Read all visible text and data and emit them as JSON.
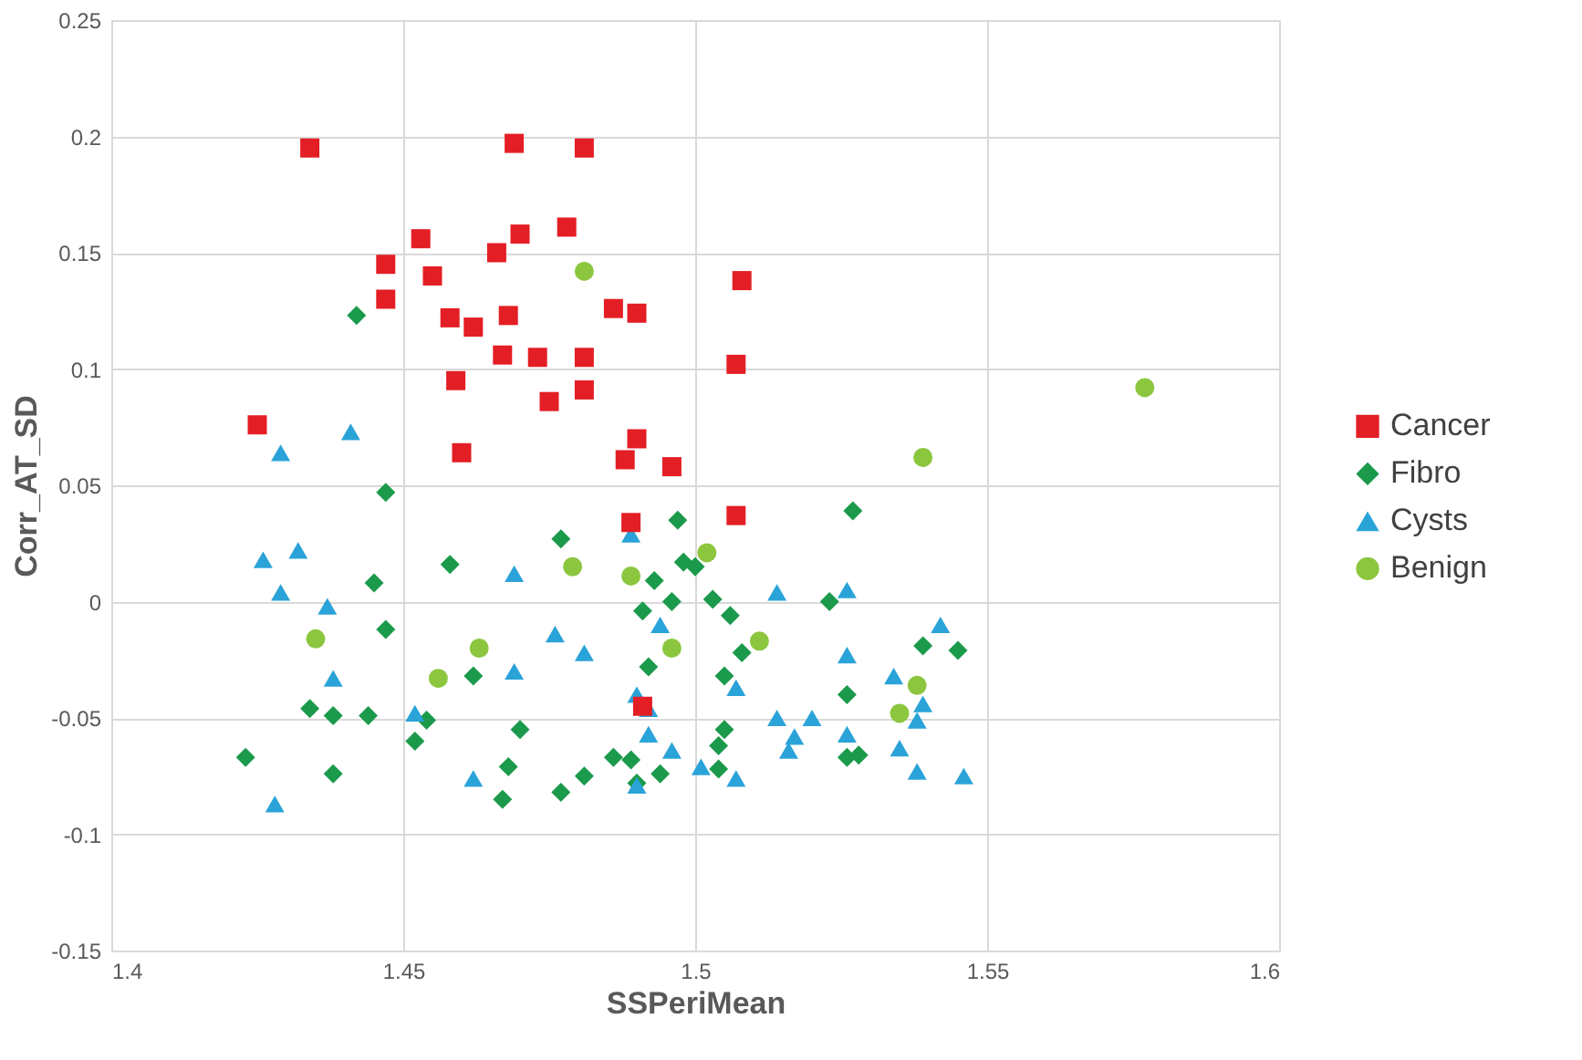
{
  "chart_data": {
    "type": "scatter",
    "xlabel": "SSPeriMean",
    "ylabel": "Corr_AT_SD",
    "xlim": [
      1.4,
      1.6
    ],
    "xticks": [
      1.4,
      1.45,
      1.5,
      1.55,
      1.6
    ],
    "ylim": [
      -0.15,
      0.25
    ],
    "yticks": [
      -0.15,
      -0.1,
      -0.05,
      0,
      0.05,
      0.1,
      0.15,
      0.2,
      0.25
    ],
    "grid": true,
    "legend": "right",
    "series": [
      {
        "name": "Cancer",
        "color": "#e31e24",
        "marker": "square",
        "x": [
          1.434,
          1.469,
          1.481,
          1.453,
          1.47,
          1.478,
          1.466,
          1.447,
          1.455,
          1.447,
          1.508,
          1.458,
          1.462,
          1.468,
          1.486,
          1.49,
          1.467,
          1.473,
          1.481,
          1.507,
          1.459,
          1.481,
          1.475,
          1.425,
          1.46,
          1.49,
          1.488,
          1.496,
          1.489,
          1.507,
          1.491
        ],
        "values": [
          0.195,
          0.197,
          0.195,
          0.156,
          0.158,
          0.161,
          0.15,
          0.145,
          0.14,
          0.13,
          0.138,
          0.122,
          0.118,
          0.123,
          0.126,
          0.124,
          0.106,
          0.105,
          0.105,
          0.102,
          0.095,
          0.091,
          0.086,
          0.076,
          0.064,
          0.07,
          0.061,
          0.058,
          0.034,
          0.037,
          -0.045
        ]
      },
      {
        "name": "Fibro",
        "color": "#1b9a4b",
        "marker": "diamond",
        "x": [
          1.442,
          1.447,
          1.477,
          1.497,
          1.527,
          1.458,
          1.445,
          1.498,
          1.5,
          1.493,
          1.503,
          1.496,
          1.523,
          1.491,
          1.506,
          1.447,
          1.539,
          1.545,
          1.508,
          1.492,
          1.462,
          1.505,
          1.526,
          1.434,
          1.438,
          1.444,
          1.454,
          1.452,
          1.47,
          1.505,
          1.504,
          1.486,
          1.489,
          1.423,
          1.526,
          1.528,
          1.468,
          1.504,
          1.438,
          1.481,
          1.494,
          1.477,
          1.467,
          1.49
        ],
        "values": [
          0.123,
          0.047,
          0.027,
          0.035,
          0.039,
          0.016,
          0.008,
          0.017,
          0.015,
          0.009,
          0.001,
          0.0,
          0.0,
          -0.004,
          -0.006,
          -0.012,
          -0.019,
          -0.021,
          -0.022,
          -0.028,
          -0.032,
          -0.032,
          -0.04,
          -0.046,
          -0.049,
          -0.049,
          -0.051,
          -0.06,
          -0.055,
          -0.055,
          -0.062,
          -0.067,
          -0.068,
          -0.067,
          -0.067,
          -0.066,
          -0.071,
          -0.072,
          -0.074,
          -0.075,
          -0.074,
          -0.082,
          -0.085,
          -0.078
        ]
      },
      {
        "name": "Cysts",
        "color": "#2aa3d8",
        "marker": "triangle",
        "x": [
          1.441,
          1.429,
          1.426,
          1.432,
          1.429,
          1.437,
          1.469,
          1.489,
          1.514,
          1.526,
          1.542,
          1.476,
          1.494,
          1.481,
          1.438,
          1.469,
          1.526,
          1.507,
          1.534,
          1.49,
          1.492,
          1.452,
          1.492,
          1.514,
          1.52,
          1.539,
          1.538,
          1.517,
          1.516,
          1.526,
          1.535,
          1.496,
          1.49,
          1.501,
          1.507,
          1.538,
          1.546,
          1.462,
          1.428
        ],
        "values": [
          0.073,
          0.064,
          0.018,
          0.022,
          0.004,
          -0.002,
          0.012,
          0.029,
          0.004,
          0.005,
          -0.01,
          -0.014,
          -0.01,
          -0.022,
          -0.033,
          -0.03,
          -0.023,
          -0.037,
          -0.032,
          -0.04,
          -0.046,
          -0.048,
          -0.057,
          -0.05,
          -0.05,
          -0.044,
          -0.051,
          -0.058,
          -0.064,
          -0.057,
          -0.063,
          -0.064,
          -0.079,
          -0.071,
          -0.076,
          -0.073,
          -0.075,
          -0.076,
          -0.087
        ]
      },
      {
        "name": "Benign",
        "color": "#8cc63f",
        "marker": "circle",
        "x": [
          1.481,
          1.577,
          1.539,
          1.479,
          1.502,
          1.489,
          1.435,
          1.463,
          1.496,
          1.511,
          1.456,
          1.538,
          1.535
        ],
        "values": [
          0.142,
          0.092,
          0.062,
          0.015,
          0.021,
          0.011,
          -0.016,
          -0.02,
          -0.02,
          -0.017,
          -0.033,
          -0.036,
          -0.048
        ]
      }
    ]
  }
}
